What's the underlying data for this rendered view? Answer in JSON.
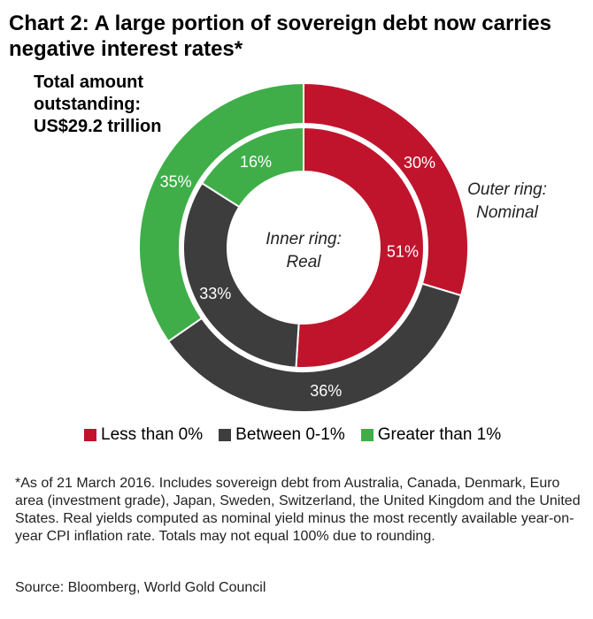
{
  "title_line1": "Chart 2: A large portion of sovereign debt now carries",
  "title_line2": "negative interest rates*",
  "total": {
    "line1": "Total amount",
    "line2": "outstanding:",
    "line3": "US$29.2 trillion"
  },
  "center_label": {
    "line1": "Inner ring:",
    "line2": "Real"
  },
  "outer_label": {
    "line1": "Outer ring:",
    "line2": "Nominal"
  },
  "colors": {
    "less_than_0": "#c0142d",
    "between_0_1": "#3d3d3d",
    "greater_than_1": "#3fae49"
  },
  "chart_data": {
    "type": "pie",
    "categories": [
      "Less than 0%",
      "Between 0-1%",
      "Greater than 1%"
    ],
    "series": [
      {
        "name": "Outer ring: Nominal",
        "values": [
          30,
          36,
          35
        ],
        "labels": [
          "30%",
          "36%",
          "35%"
        ]
      },
      {
        "name": "Inner ring: Real",
        "values": [
          51,
          33,
          16
        ],
        "labels": [
          "51%",
          "33%",
          "16%"
        ]
      }
    ],
    "legend_position": "bottom"
  },
  "legend": [
    {
      "label": "Less than 0%",
      "color": "#c0142d"
    },
    {
      "label": "Between 0-1%",
      "color": "#3d3d3d"
    },
    {
      "label": "Greater than 1%",
      "color": "#3fae49"
    }
  ],
  "footnote": "*As of 21 March 2016. Includes sovereign debt from Australia, Canada, Denmark, Euro area (investment grade), Japan, Sweden, Switzerland, the United Kingdom and the United States. Real yields computed as nominal yield minus the most recently available year-on-year CPI inflation rate. Totals may not equal 100% due to rounding.",
  "source": "Source: Bloomberg, World Gold Council"
}
